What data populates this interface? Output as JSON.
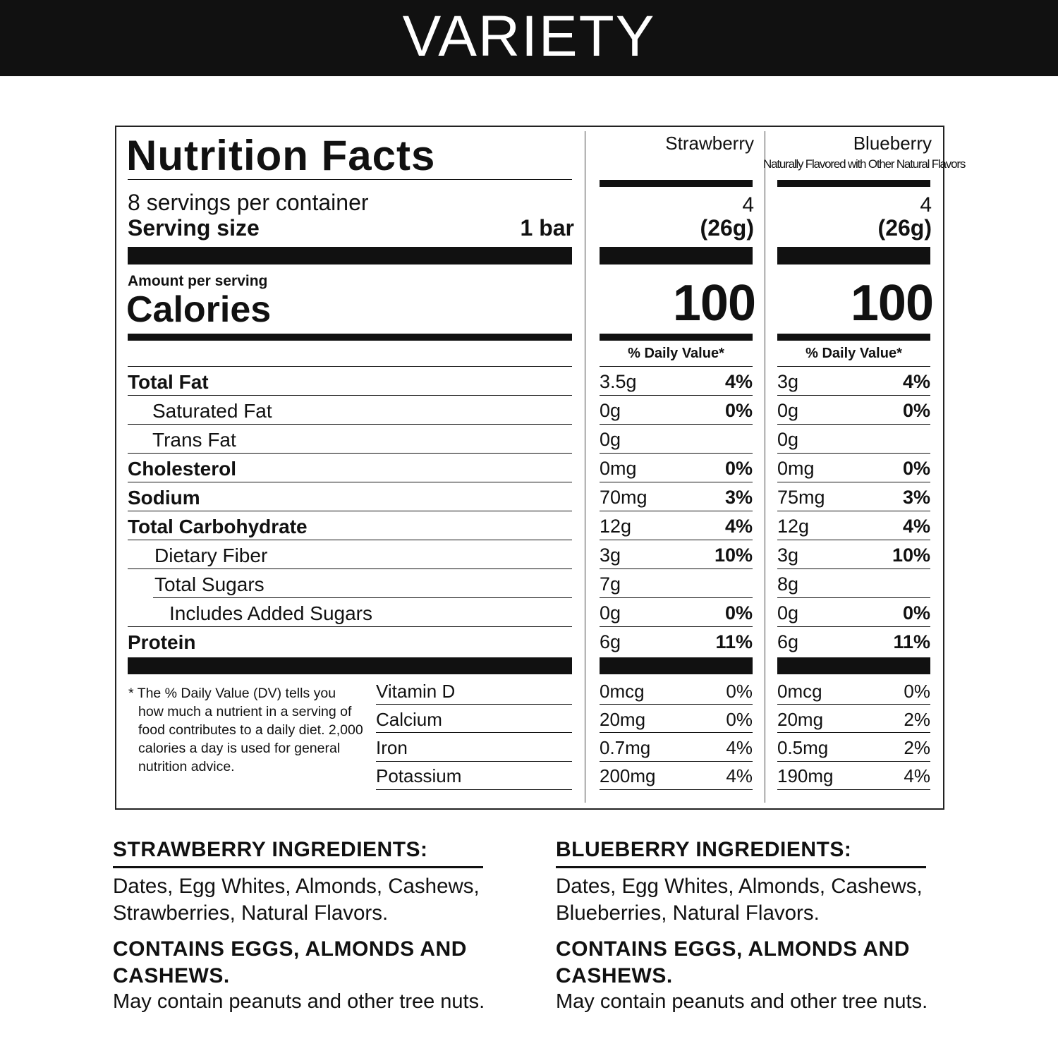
{
  "header": {
    "title": "VARIETY"
  },
  "label": {
    "title": "Nutrition Facts",
    "servings": "8 servings per container",
    "serving_size_label": "Serving size",
    "serving_size": "1 bar",
    "amount_per_serving": "Amount per serving",
    "calories_label": "Calories",
    "nutrients": [
      "Total Fat",
      "Saturated Fat",
      "Trans Fat",
      "Cholesterol",
      "Sodium",
      "Total Carbohydrate",
      "Dietary Fiber",
      "Total Sugars",
      "Includes Added Sugars",
      "Protein"
    ],
    "footnote": "* The % Daily Value (DV) tells you how much a nutrient in a serving of food contributes to a daily diet. 2,000 calories a day is used for general nutrition advice.",
    "vitamins": [
      "Vitamin D",
      "Calcium",
      "Iron",
      "Potassium"
    ],
    "flavors": [
      {
        "name": "Strawberry",
        "servings": 4,
        "serving_size": "(26g)",
        "calories": 100,
        "dv_header": "% Daily Value*",
        "nutrients": [
          {
            "amount": "3.5g",
            "dv": "4%"
          },
          {
            "amount": "0g",
            "dv": "0%"
          },
          {
            "amount": "0g"
          },
          {
            "amount": "0mg",
            "dv": "0%"
          },
          {
            "amount": "70mg",
            "dv": "3%"
          },
          {
            "amount": "12g",
            "dv": "4%"
          },
          {
            "amount": "3g",
            "dv": "10%"
          },
          {
            "amount": "7g"
          },
          {
            "amount": "0g",
            "dv": "0%"
          },
          {
            "amount": "6g",
            "dv": "11%"
          }
        ],
        "vitamins": [
          {
            "amount": "0mcg",
            "dv": "0%"
          },
          {
            "amount": "20mg",
            "dv": "0%"
          },
          {
            "amount": "0.7mg",
            "dv": "4%"
          },
          {
            "amount": "200mg",
            "dv": "4%"
          }
        ]
      },
      {
        "name": "Blueberry",
        "note": "Naturally Flavored with Other Natural Flavors",
        "servings": 4,
        "serving_size": "(26g)",
        "calories": 100,
        "dv_header": "% Daily Value*",
        "nutrients": [
          {
            "amount": "3g",
            "dv": "4%"
          },
          {
            "amount": "0g",
            "dv": "0%"
          },
          {
            "amount": "0g"
          },
          {
            "amount": "0mg",
            "dv": "0%"
          },
          {
            "amount": "75mg",
            "dv": "3%"
          },
          {
            "amount": "12g",
            "dv": "4%"
          },
          {
            "amount": "3g",
            "dv": "10%"
          },
          {
            "amount": "8g"
          },
          {
            "amount": "0g",
            "dv": "0%"
          },
          {
            "amount": "6g",
            "dv": "11%"
          }
        ],
        "vitamins": [
          {
            "amount": "0mcg",
            "dv": "0%"
          },
          {
            "amount": "20mg",
            "dv": "2%"
          },
          {
            "amount": "0.5mg",
            "dv": "2%"
          },
          {
            "amount": "190mg",
            "dv": "4%"
          }
        ]
      }
    ]
  },
  "ingredients": [
    {
      "heading": "STRAWBERRY INGREDIENTS:",
      "text": "Dates, Egg Whites, Almonds, Cashews, Strawberries, Natural Flavors.",
      "contains": "CONTAINS EGGS, ALMONDS AND CASHEWS.",
      "may_contain": "May contain peanuts and other tree nuts."
    },
    {
      "heading": "BLUEBERRY INGREDIENTS:",
      "text": "Dates, Egg Whites, Almonds, Cashews, Blueberries, Natural Flavors.",
      "contains": "CONTAINS EGGS, ALMONDS AND CASHEWS.",
      "may_contain": "May contain peanuts and other tree nuts."
    }
  ]
}
